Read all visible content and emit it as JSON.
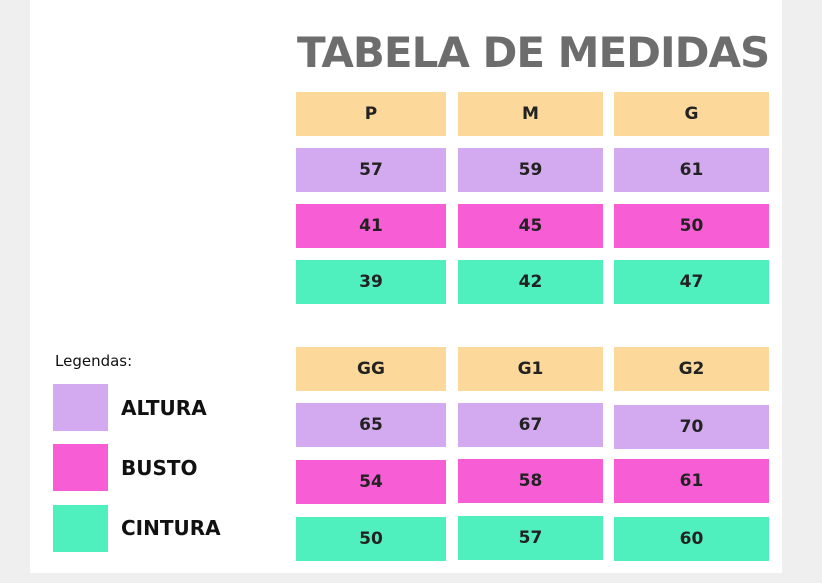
{
  "title": "TABELA DE MEDIDAS",
  "colors": {
    "size_header": "#fcd89a",
    "altura": "#d3aaef",
    "busto": "#f75ed6",
    "cintura": "#50f0be",
    "title": "#6d6d6d"
  },
  "table_top": {
    "sizes": [
      "P",
      "M",
      "G"
    ],
    "altura": [
      "57",
      "59",
      "61"
    ],
    "busto": [
      "41",
      "45",
      "50"
    ],
    "cintura": [
      "39",
      "42",
      "47"
    ]
  },
  "table_bottom": {
    "sizes": [
      "GG",
      "G1",
      "G2"
    ],
    "altura": [
      "65",
      "67",
      "70"
    ],
    "busto": [
      "54",
      "58",
      "61"
    ],
    "cintura": [
      "50",
      "57",
      "60"
    ]
  },
  "legend": {
    "title": "Legendas:",
    "altura": "ALTURA",
    "busto": "BUSTO",
    "cintura": "CINTURA"
  }
}
